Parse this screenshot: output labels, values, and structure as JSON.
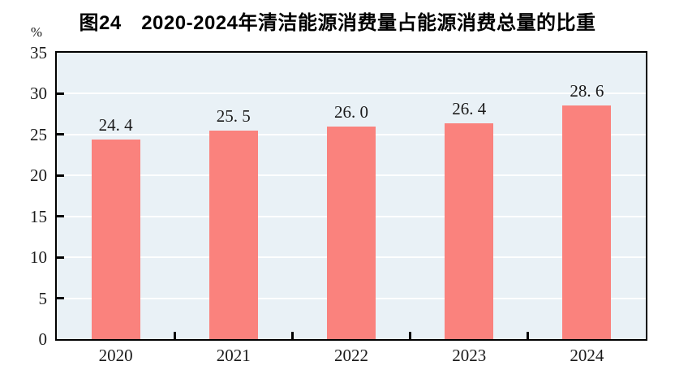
{
  "title": "图24　2020-2024年清洁能源消费量占能源消费总量的比重",
  "y_axis_unit": "%",
  "chart_data": {
    "type": "bar",
    "title": "图24　2020-2024年清洁能源消费量占能源消费总量的比重",
    "categories": [
      "2020",
      "2021",
      "2022",
      "2023",
      "2024"
    ],
    "values": [
      24.4,
      25.5,
      26.0,
      26.4,
      28.6
    ],
    "value_labels": [
      "24. 4",
      "25. 5",
      "26. 0",
      "26. 4",
      "28. 6"
    ],
    "xlabel": "",
    "ylabel": "%",
    "ylim": [
      0,
      35
    ],
    "y_ticks": [
      0,
      5,
      10,
      15,
      20,
      25,
      30,
      35
    ],
    "grid": "horizontal",
    "legend": "none",
    "colors": {
      "bar_fill": "#fa827d",
      "plot_background": "#e9f1f6",
      "gridline": "#fdfefe",
      "axis_border": "#000000",
      "text": "#1a1a1a"
    }
  }
}
